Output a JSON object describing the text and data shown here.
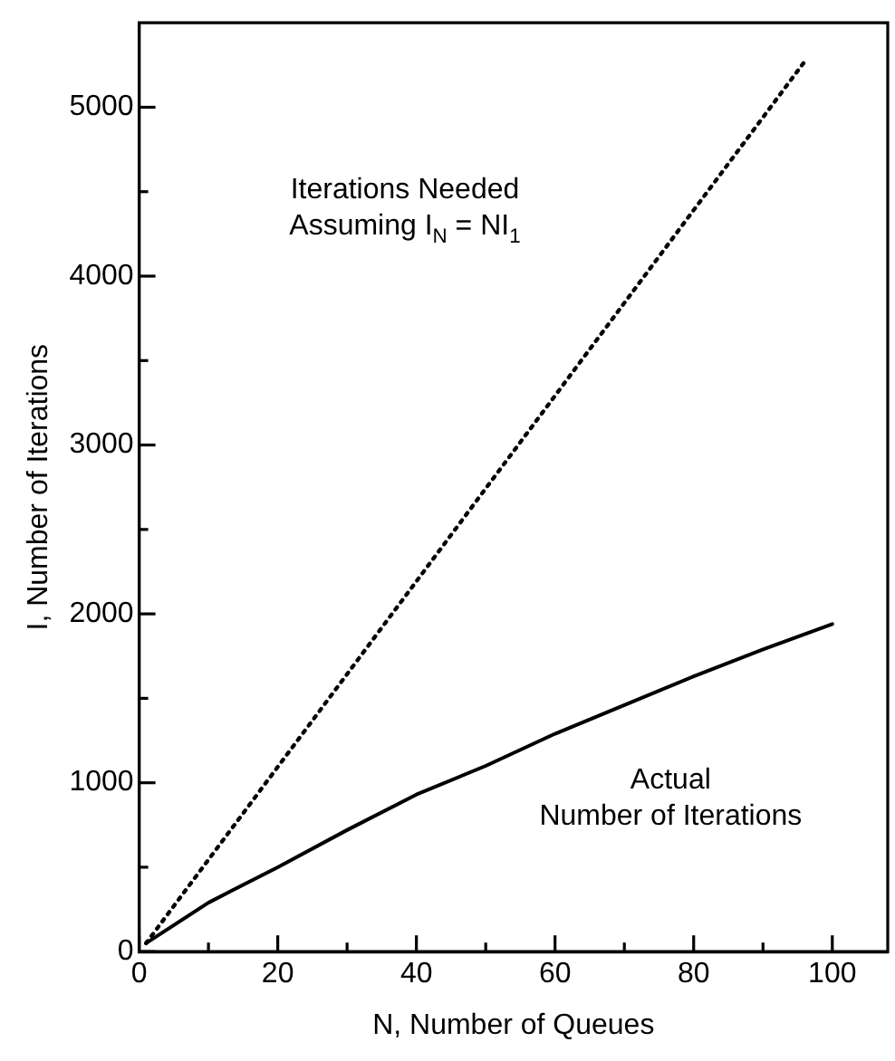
{
  "chart_data": {
    "type": "line",
    "xlabel": "N, Number of Queues",
    "ylabel": "I, Number of Iterations",
    "series": [
      {
        "color": "#000000",
        "line_style": "dotted",
        "x": [
          1,
          96
        ],
        "values": [
          50,
          5270
        ]
      },
      {
        "color": "#000000",
        "line_style": "solid",
        "x": [
          1,
          10,
          20,
          30,
          40,
          50,
          60,
          70,
          80,
          90,
          100
        ],
        "values": [
          50,
          290,
          500,
          720,
          930,
          1100,
          1290,
          1460,
          1630,
          1790,
          1940
        ]
      }
    ],
    "xlim": [
      0,
      108
    ],
    "xticks": [
      0,
      {
        "value": 10,
        "label": null
      },
      20,
      {
        "value": 30,
        "label": null
      },
      40,
      {
        "value": 50,
        "label": null
      },
      60,
      {
        "value": 70,
        "label": null
      },
      80,
      {
        "value": 90,
        "label": null
      },
      100
    ],
    "ylim": [
      0,
      5500
    ],
    "yticks": [
      0,
      {
        "value": 500,
        "label": null
      },
      1000,
      {
        "value": 1500,
        "label": null
      },
      2000,
      {
        "value": 2500,
        "label": null
      },
      3000,
      {
        "value": 3500,
        "label": null
      },
      4000,
      {
        "value": 4500,
        "label": null
      },
      5000
    ],
    "annotations": [
      "Iterations Needed\nAssuming I$_{N}$ = NI$_{1}$",
      "Actual\nNumber of Iterations"
    ],
    "grid": false,
    "legend": false,
    "marker": "none"
  }
}
